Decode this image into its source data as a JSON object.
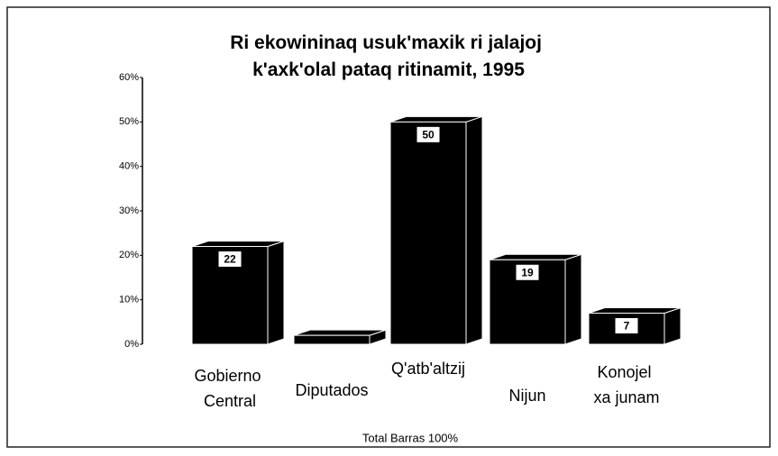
{
  "chart_data": {
    "type": "bar3d",
    "title": "Ri ekowininaq usuk'maxik ri jalajoj k'axk'olal pataq ritinamit, 1995",
    "categories": [
      "Gobierno Central",
      "Diputados",
      "Q'atb'altzij",
      "Nijun",
      "Konojel xa junam"
    ],
    "values": [
      22,
      2,
      50,
      19,
      7
    ],
    "value_labels": [
      "22",
      null,
      "50",
      "19",
      "7"
    ],
    "color": "#000000",
    "x_label": "Total Barras 100%",
    "ylim": [
      0,
      60
    ],
    "yticks": [
      {
        "value": 0,
        "label": "0%"
      },
      {
        "value": 10,
        "label": "10%"
      },
      {
        "value": 20,
        "label": "20%"
      },
      {
        "value": 30,
        "label": "30%"
      },
      {
        "value": 40,
        "label": "40%"
      },
      {
        "value": 50,
        "label": "50%"
      },
      {
        "value": 60,
        "label": "60%"
      }
    ],
    "grid": false
  }
}
